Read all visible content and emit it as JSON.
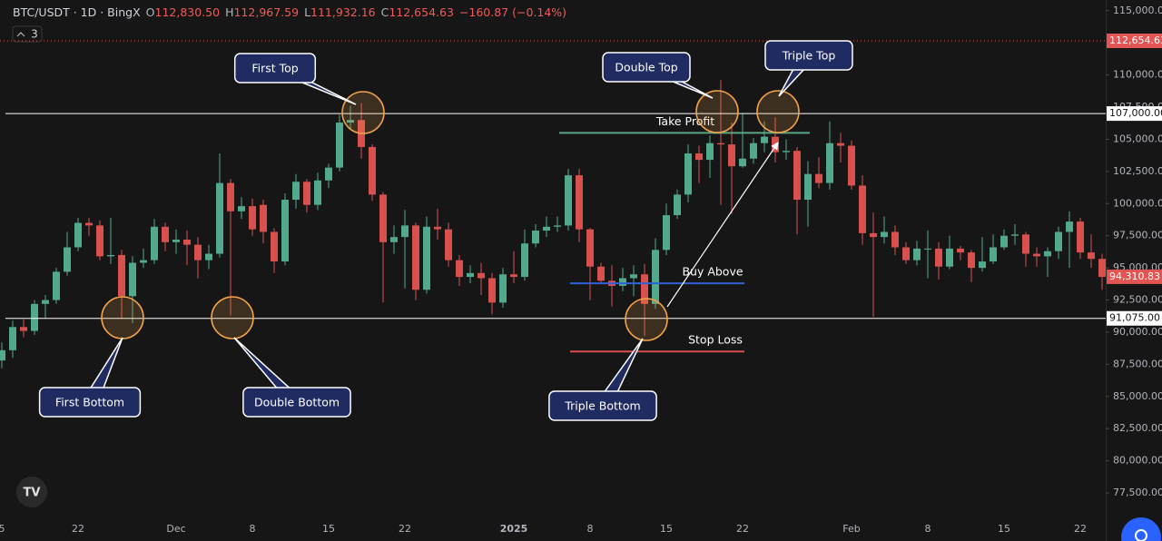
{
  "header": {
    "symbol": "BTC/USDT · 1D · BingX",
    "ohlc": [
      {
        "key": "O",
        "value": "112,830.50"
      },
      {
        "key": "H",
        "value": "112,967.59"
      },
      {
        "key": "L",
        "value": "111,932.16"
      },
      {
        "key": "C",
        "value": "112,654.63"
      }
    ],
    "change": "−160.87 (−0.14%)",
    "indicators": "3"
  },
  "chart_data": {
    "type": "candlestick",
    "categories": [
      "5",
      null,
      null,
      null,
      null,
      null,
      null,
      "22",
      null,
      null,
      null,
      null,
      null,
      null,
      null,
      null,
      "Dec",
      null,
      null,
      null,
      null,
      null,
      null,
      "8",
      null,
      null,
      null,
      null,
      null,
      null,
      "15",
      null,
      null,
      null,
      null,
      null,
      null,
      "22",
      null,
      null,
      null,
      null,
      null,
      null,
      null,
      null,
      null,
      "2025",
      null,
      null,
      null,
      null,
      null,
      null,
      "8",
      null,
      null,
      null,
      null,
      null,
      null,
      "15",
      null,
      null,
      null,
      null,
      null,
      null,
      "22",
      null,
      null,
      null,
      null,
      null,
      null,
      null,
      null,
      null,
      "Feb",
      null,
      null,
      null,
      null,
      null,
      null,
      "8",
      null,
      null,
      null,
      null,
      null,
      null,
      "15",
      null,
      null,
      null,
      null,
      null,
      null,
      "22",
      null,
      null
    ],
    "open": [
      87800,
      88600,
      90400,
      90100,
      92200,
      92500,
      94700,
      96600,
      98500,
      98300,
      95900,
      96000,
      92800,
      95400,
      95600,
      98200,
      97000,
      97200,
      96800,
      95600,
      96100,
      101600,
      99400,
      99800,
      99900,
      97800,
      95500,
      100300,
      101700,
      99900,
      101800,
      102800,
      106300,
      106500,
      104400,
      100700,
      97000,
      97400,
      98300,
      93300,
      98200,
      98000,
      95600,
      94300,
      94600,
      94200,
      92300,
      94500,
      94300,
      96900,
      97900,
      98200,
      98300,
      102200,
      98000,
      95100,
      94000,
      93600,
      94200,
      94500,
      92200,
      96400,
      99100,
      100700,
      103900,
      103400,
      104700,
      104600,
      102900,
      103500,
      104700,
      105200,
      104000,
      104100,
      100300,
      102300,
      101600,
      104700,
      104500,
      101400,
      97700,
      97400,
      97800,
      96600,
      95600,
      96500,
      96500,
      95100,
      96500,
      96200,
      95000,
      95500,
      96600,
      97500,
      97600,
      96100,
      95900,
      96300,
      97800,
      98600,
      96200,
      95700
    ],
    "high": [
      89200,
      90900,
      91000,
      92500,
      92900,
      95000,
      97800,
      98900,
      98900,
      98700,
      98900,
      96400,
      95900,
      96500,
      98800,
      98500,
      98000,
      97900,
      97400,
      96800,
      103900,
      101900,
      100500,
      100400,
      100300,
      98100,
      100800,
      102300,
      101900,
      102400,
      103100,
      106900,
      107600,
      107800,
      104600,
      100900,
      98300,
      99500,
      98500,
      99000,
      99600,
      98500,
      96000,
      95200,
      95400,
      94600,
      95000,
      96300,
      98000,
      98400,
      99000,
      99000,
      102700,
      102700,
      98100,
      95400,
      95200,
      95000,
      95200,
      95300,
      97300,
      100000,
      101100,
      104600,
      104500,
      105300,
      109600,
      106300,
      107000,
      105100,
      106400,
      106700,
      105000,
      104400,
      103300,
      103600,
      106400,
      105500,
      104900,
      102200,
      99300,
      99000,
      98300,
      97000,
      97100,
      97900,
      97000,
      97500,
      96700,
      96400,
      97400,
      97600,
      98000,
      98400,
      97800,
      96600,
      96600,
      98200,
      99400,
      98900,
      97600,
      96100
    ],
    "low": [
      87200,
      88000,
      89600,
      89800,
      91100,
      92200,
      94400,
      96300,
      97500,
      95600,
      95300,
      91100,
      90700,
      95000,
      95300,
      96300,
      96100,
      95200,
      94200,
      94900,
      95800,
      91300,
      98800,
      97500,
      96900,
      94600,
      95200,
      99600,
      99300,
      99500,
      101200,
      102500,
      105800,
      103500,
      100200,
      92300,
      96100,
      93400,
      92500,
      93000,
      97200,
      95100,
      93600,
      93800,
      92900,
      91400,
      91900,
      93800,
      94000,
      96600,
      97400,
      97800,
      97900,
      97000,
      92500,
      93800,
      92000,
      93200,
      92800,
      89700,
      91800,
      96000,
      98800,
      100100,
      101600,
      102000,
      99900,
      99200,
      102800,
      103100,
      104000,
      103200,
      103400,
      97600,
      98200,
      101200,
      101100,
      103200,
      101100,
      96800,
      91200,
      96900,
      96000,
      95300,
      95200,
      94200,
      94100,
      94900,
      95600,
      93900,
      94700,
      95300,
      96400,
      96800,
      95100,
      95100,
      94300,
      95700,
      95000,
      95700,
      95000,
      93300
    ],
    "close": [
      88600,
      90400,
      90100,
      92200,
      92500,
      94700,
      96600,
      98500,
      98300,
      95900,
      96000,
      92800,
      95400,
      95600,
      98200,
      97000,
      97200,
      96800,
      95600,
      96100,
      101600,
      99400,
      99800,
      98000,
      97800,
      95500,
      100300,
      101700,
      99900,
      101800,
      102800,
      106300,
      106500,
      104400,
      100700,
      97000,
      97400,
      98300,
      93300,
      98200,
      98000,
      95600,
      94300,
      94600,
      94200,
      92300,
      94500,
      94300,
      96900,
      97900,
      98200,
      98300,
      102200,
      98000,
      95100,
      94000,
      93600,
      94200,
      94500,
      92200,
      96400,
      99100,
      100700,
      103900,
      103400,
      104700,
      104600,
      102900,
      103500,
      104700,
      105200,
      104000,
      104100,
      100300,
      102300,
      101600,
      104700,
      104500,
      101400,
      97700,
      97400,
      97800,
      96600,
      95600,
      96500,
      96500,
      95100,
      96500,
      96200,
      95000,
      95500,
      96600,
      97500,
      97600,
      96100,
      95900,
      96300,
      97800,
      98600,
      96200,
      95700,
      94300
    ],
    "up_color": "#52a98d",
    "down_color": "#d9514e",
    "ylim": [
      75600,
      115830
    ],
    "yticks": [
      {
        "value": 115000,
        "label": "115,000.00"
      },
      {
        "value": 110000,
        "label": "110,000.00"
      },
      {
        "value": 107500,
        "label": "107,500.00"
      },
      {
        "value": 105000,
        "label": "105,000.00"
      },
      {
        "value": 102500,
        "label": "102,500.00"
      },
      {
        "value": 100000,
        "label": "100,000.00"
      },
      {
        "value": 97500,
        "label": "97,500.00"
      },
      {
        "value": 95000,
        "label": "95,000.00"
      },
      {
        "value": 92500,
        "label": "92,500.00"
      },
      {
        "value": 90000,
        "label": "90,000.00"
      },
      {
        "value": 87500,
        "label": "87,500.00"
      },
      {
        "value": 85000,
        "label": "85,000.00"
      },
      {
        "value": 82500,
        "label": "82,500.00"
      },
      {
        "value": 80000,
        "label": "80,000.00"
      },
      {
        "value": 77500,
        "label": "77,500.00"
      }
    ],
    "price_lines": [
      {
        "value": 107000,
        "label": "107,000.00"
      },
      {
        "value": 91075,
        "label": "91,075.00"
      }
    ],
    "price_tags": [
      {
        "value": 112654.63,
        "label": "112,654.63",
        "color": "#e25552",
        "line_style": "dotted"
      },
      {
        "value": 94310.83,
        "label": "94,310.83",
        "color": "#e25552"
      }
    ],
    "levels": [
      {
        "label": "Take Profit",
        "value": 105500,
        "color": "#5aa585"
      },
      {
        "label": "Buy Above",
        "value": 93800,
        "color": "#2f62d8"
      },
      {
        "label": "Stop Loss",
        "value": 88500,
        "color": "#d9514e"
      }
    ],
    "callouts": [
      "First Top",
      "Double Top",
      "Triple Top",
      "First Bottom",
      "Double Bottom",
      "Triple Bottom"
    ]
  }
}
